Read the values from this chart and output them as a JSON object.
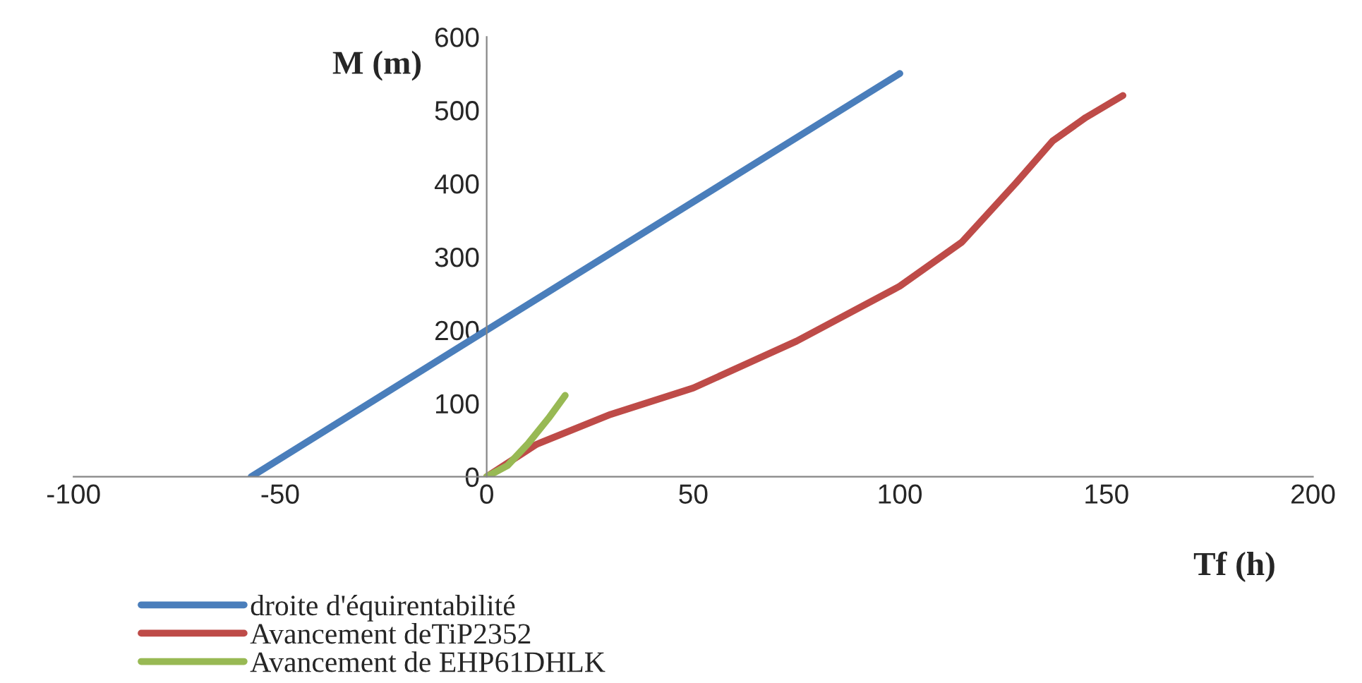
{
  "chart_data": {
    "type": "line",
    "xlabel": "Tf (h)",
    "ylabel": "M (m)",
    "xlim": [
      -100,
      200
    ],
    "xticks": [
      -100,
      -50,
      0,
      50,
      100,
      150,
      200
    ],
    "ylim": [
      0,
      600
    ],
    "yticks": [
      0,
      100,
      200,
      300,
      400,
      500,
      600
    ],
    "legend": "bottom",
    "grid": false,
    "marker": "none",
    "line_style": "solid",
    "series": [
      {
        "name": "droite d'équirentabilité",
        "color": "#4a7ebb",
        "x": [
          -57,
          0,
          100
        ],
        "values": [
          0,
          200,
          550
        ]
      },
      {
        "name": "Avancement deTiP2352",
        "color": "#be4b48",
        "x": [
          0,
          12,
          30,
          50,
          75,
          100,
          115,
          128,
          137,
          145,
          154
        ],
        "values": [
          0,
          44,
          85,
          121,
          185,
          260,
          320,
          400,
          458,
          490,
          520
        ]
      },
      {
        "name": "Avancement de EHP61DHLK",
        "color": "#98b954",
        "x": [
          0,
          5,
          10,
          15,
          19
        ],
        "values": [
          0,
          15,
          45,
          80,
          111
        ]
      }
    ]
  }
}
